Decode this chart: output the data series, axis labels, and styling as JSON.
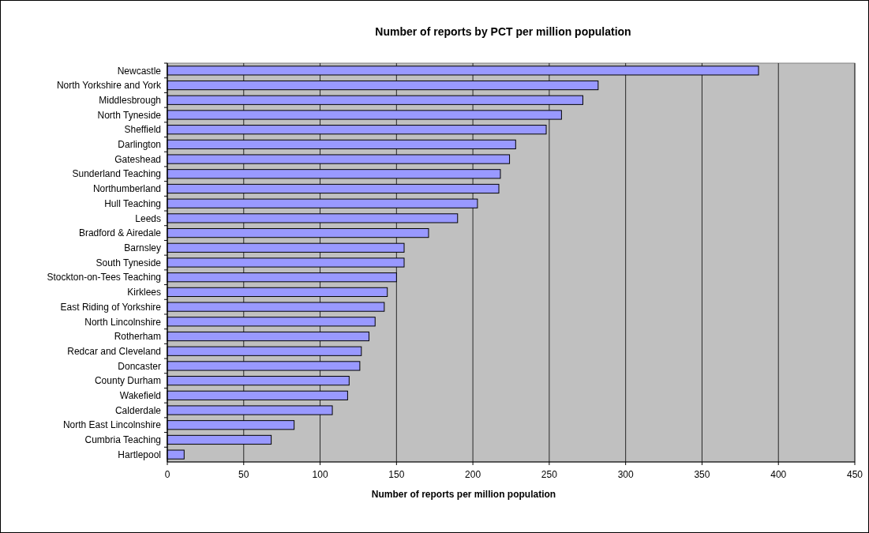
{
  "chart_data": {
    "type": "bar",
    "orientation": "horizontal",
    "title": "Number of reports by PCT per million population",
    "xlabel": "Number of reports per million population",
    "categories": [
      "Newcastle",
      "North Yorkshire and York",
      "Middlesbrough",
      "North Tyneside",
      "Sheffield",
      "Darlington",
      "Gateshead",
      "Sunderland Teaching",
      "Northumberland",
      "Hull Teaching",
      "Leeds",
      "Bradford & Airedale",
      "Barnsley",
      "South Tyneside",
      "Stockton-on-Tees Teaching",
      "Kirklees",
      "East Riding of Yorkshire",
      "North Lincolnshire",
      "Rotherham",
      "Redcar and Cleveland",
      "Doncaster",
      "County Durham",
      "Wakefield",
      "Calderdale",
      "North East Lincolnshire",
      "Cumbria Teaching",
      "Hartlepool"
    ],
    "values": [
      387,
      282,
      272,
      258,
      248,
      228,
      224,
      218,
      217,
      203,
      190,
      171,
      155,
      155,
      150,
      144,
      142,
      136,
      132,
      127,
      126,
      119,
      118,
      108,
      83,
      68,
      11
    ],
    "color": "#9999ff",
    "xlim": [
      0,
      450
    ],
    "xticks": [
      0,
      50,
      100,
      150,
      200,
      250,
      300,
      350,
      400,
      450
    ],
    "grid": "x"
  }
}
